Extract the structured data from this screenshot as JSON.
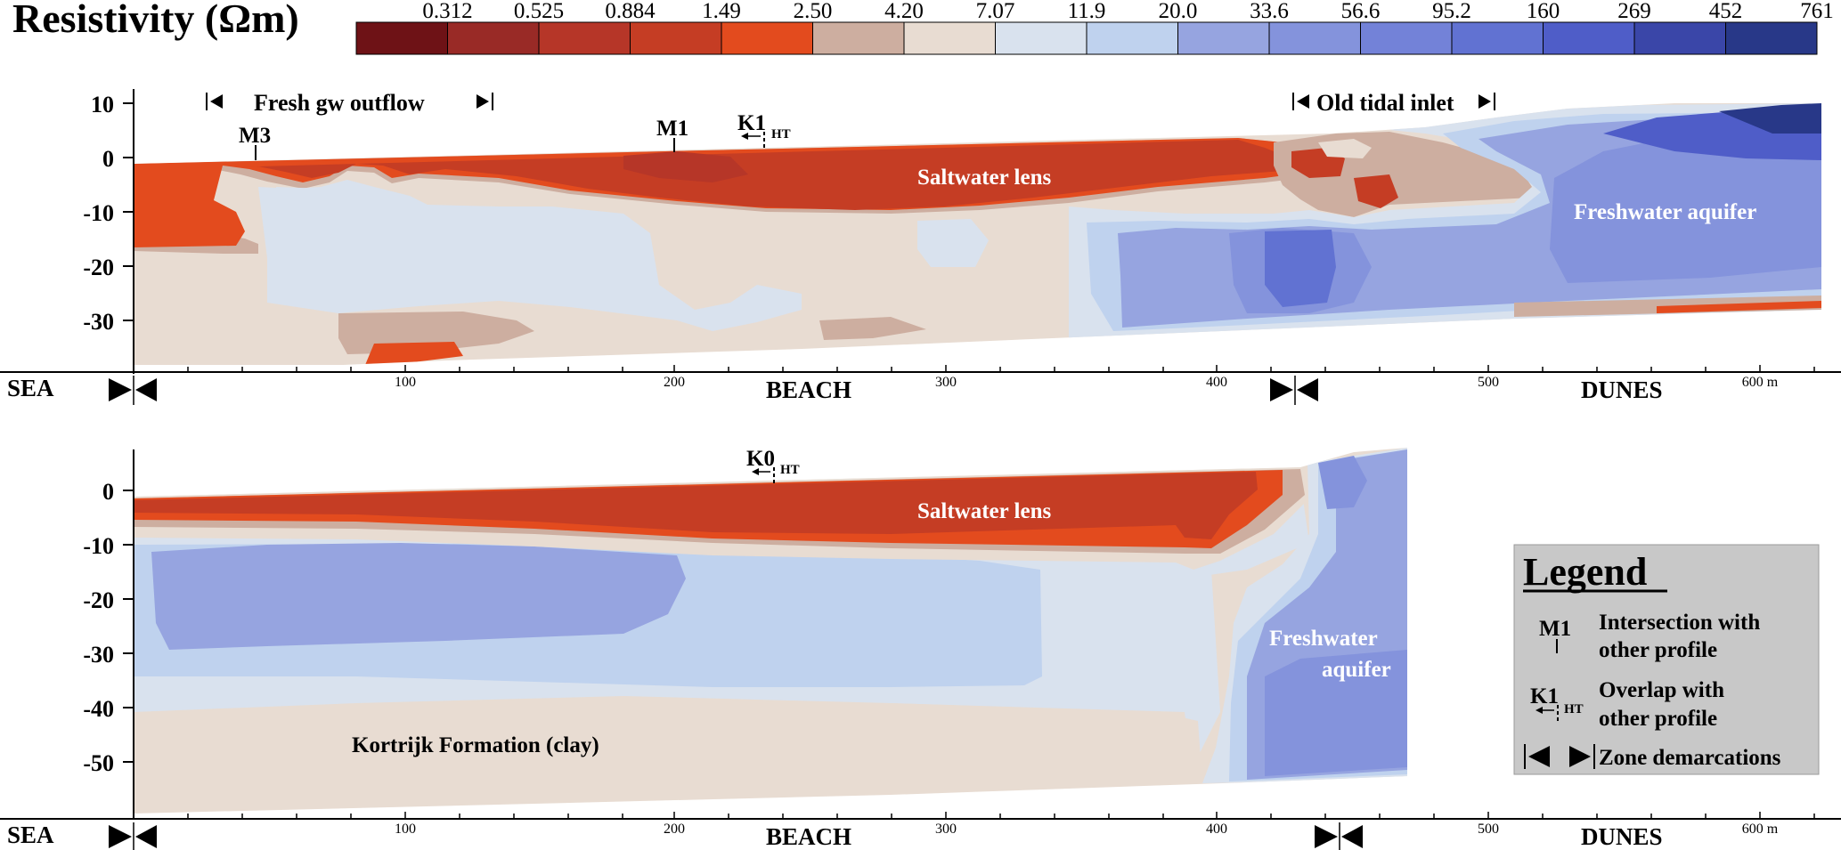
{
  "title": "Resistivity (Ωm)",
  "colorbar": {
    "tick_labels": [
      "0.312",
      "0.525",
      "0.884",
      "1.49",
      "2.50",
      "4.20",
      "7.07",
      "11.9",
      "20.0",
      "33.6",
      "56.6",
      "95.2",
      "160",
      "269",
      "452",
      "761"
    ],
    "colors": [
      "#6e1216",
      "#992a26",
      "#b63628",
      "#c53d24",
      "#e34b1e",
      "#cdaea0",
      "#e8dcd2",
      "#d9e2ee",
      "#bfd2ee",
      "#96a4e0",
      "#8493dc",
      "#7382d8",
      "#6172d2",
      "#4f5dc8",
      "#3a46a8",
      "#283888"
    ]
  },
  "profile_top": {
    "y_ticks": [
      "10",
      "0",
      "-10",
      "-20",
      "-30"
    ],
    "x_ticks": [
      "100",
      "200",
      "300",
      "400",
      "500",
      "600 m"
    ],
    "zones": {
      "sea": "SEA",
      "beach": "BEACH",
      "dunes": "DUNES"
    },
    "annotations": {
      "fresh_outflow": "Fresh gw outflow",
      "tidal_inlet": "Old tidal inlet",
      "saltwater": "Saltwater lens",
      "freshwater": "Freshwater aquifer"
    },
    "markers": {
      "m3": "M3",
      "m1": "M1",
      "k1": "K1",
      "k1_sub": "HT"
    }
  },
  "profile_bottom": {
    "y_ticks": [
      "0",
      "-10",
      "-20",
      "-30",
      "-40",
      "-50"
    ],
    "x_ticks": [
      "100",
      "200",
      "300",
      "400",
      "500",
      "600 m"
    ],
    "zones": {
      "sea": "SEA",
      "beach": "BEACH",
      "dunes": "DUNES"
    },
    "annotations": {
      "saltwater": "Saltwater lens",
      "freshwater_1": "Freshwater",
      "freshwater_2": "aquifer",
      "clay": "Kortrijk Formation (clay)"
    },
    "markers": {
      "k0": "K0",
      "k0_sub": "HT"
    }
  },
  "legend": {
    "title": "Legend",
    "intersection_symbol": "M1",
    "intersection_1": "Intersection with",
    "intersection_2": "other profile",
    "overlap_symbol": "K1",
    "overlap_sub": "HT",
    "overlap_1": "Overlap with",
    "overlap_2": "other profile",
    "zone_text": "Zone demarcations"
  }
}
